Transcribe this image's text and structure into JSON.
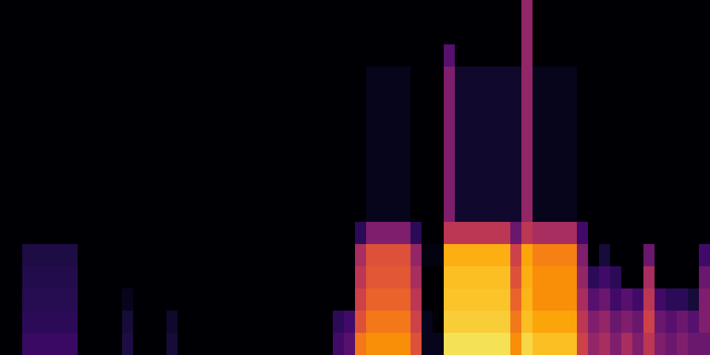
{
  "chart_data": {
    "type": "heatmap",
    "color": "inferno",
    "zlim": [
      0,
      1
    ],
    "tick_labels": false,
    "z": [
      [
        0,
        0,
        0,
        0,
        0,
        0,
        0,
        0,
        0,
        0,
        0,
        0,
        0,
        0,
        0,
        0,
        0,
        0,
        0,
        0,
        0,
        0,
        0,
        0,
        0,
        0,
        0,
        0,
        0,
        0,
        0,
        0,
        0,
        0,
        0,
        0,
        0,
        0,
        0,
        0,
        0,
        0,
        0,
        0,
        0,
        0,
        0,
        0.4,
        0,
        0,
        0,
        0,
        0,
        0,
        0,
        0,
        0,
        0,
        0,
        0,
        0,
        0,
        0,
        0
      ],
      [
        0,
        0,
        0,
        0,
        0,
        0,
        0,
        0,
        0,
        0,
        0,
        0,
        0,
        0,
        0,
        0,
        0,
        0,
        0,
        0,
        0,
        0,
        0,
        0,
        0,
        0,
        0,
        0,
        0,
        0,
        0,
        0,
        0,
        0,
        0,
        0,
        0,
        0,
        0,
        0,
        0,
        0,
        0,
        0,
        0,
        0,
        0,
        0.4,
        0,
        0,
        0,
        0,
        0,
        0,
        0,
        0,
        0,
        0,
        0,
        0,
        0,
        0,
        0,
        0
      ],
      [
        0,
        0,
        0,
        0,
        0,
        0,
        0,
        0,
        0,
        0,
        0,
        0,
        0,
        0,
        0,
        0,
        0,
        0,
        0,
        0,
        0,
        0,
        0,
        0,
        0,
        0,
        0,
        0,
        0,
        0,
        0,
        0,
        0,
        0,
        0,
        0,
        0,
        0,
        0,
        0,
        0.25,
        0,
        0,
        0,
        0,
        0,
        0,
        0.4,
        0,
        0,
        0,
        0,
        0,
        0,
        0,
        0,
        0,
        0,
        0,
        0,
        0,
        0,
        0,
        0
      ],
      [
        0,
        0,
        0,
        0,
        0,
        0,
        0,
        0,
        0,
        0,
        0,
        0,
        0,
        0,
        0,
        0,
        0,
        0,
        0,
        0,
        0,
        0,
        0,
        0,
        0,
        0,
        0,
        0,
        0,
        0,
        0,
        0,
        0,
        0.05,
        0.05,
        0.05,
        0.05,
        0,
        0,
        0,
        0.35,
        0.08,
        0.08,
        0.08,
        0.08,
        0.08,
        0.08,
        0.4,
        0.05,
        0.05,
        0.05,
        0.05,
        0,
        0,
        0,
        0,
        0,
        0,
        0,
        0,
        0,
        0,
        0,
        0
      ],
      [
        0,
        0,
        0,
        0,
        0,
        0,
        0,
        0,
        0,
        0,
        0,
        0,
        0,
        0,
        0,
        0,
        0,
        0,
        0,
        0,
        0,
        0,
        0,
        0,
        0,
        0,
        0,
        0,
        0,
        0,
        0,
        0,
        0,
        0.05,
        0.05,
        0.05,
        0.05,
        0,
        0,
        0,
        0.35,
        0.08,
        0.08,
        0.08,
        0.08,
        0.08,
        0.08,
        0.4,
        0.05,
        0.05,
        0.05,
        0.05,
        0,
        0,
        0,
        0,
        0,
        0,
        0,
        0,
        0,
        0,
        0,
        0
      ],
      [
        0,
        0,
        0,
        0,
        0,
        0,
        0,
        0,
        0,
        0,
        0,
        0,
        0,
        0,
        0,
        0,
        0,
        0,
        0,
        0,
        0,
        0,
        0,
        0,
        0,
        0,
        0,
        0,
        0,
        0,
        0,
        0,
        0,
        0.05,
        0.05,
        0.05,
        0.05,
        0,
        0,
        0,
        0.35,
        0.08,
        0.08,
        0.08,
        0.08,
        0.08,
        0.08,
        0.4,
        0.05,
        0.05,
        0.05,
        0.05,
        0,
        0,
        0,
        0,
        0,
        0,
        0,
        0,
        0,
        0,
        0,
        0
      ],
      [
        0,
        0,
        0,
        0,
        0,
        0,
        0,
        0,
        0,
        0,
        0,
        0,
        0,
        0,
        0,
        0,
        0,
        0,
        0,
        0,
        0,
        0,
        0,
        0,
        0,
        0,
        0,
        0,
        0,
        0,
        0,
        0,
        0,
        0.05,
        0.05,
        0.05,
        0.05,
        0,
        0,
        0,
        0.35,
        0.08,
        0.08,
        0.08,
        0.08,
        0.08,
        0.08,
        0.4,
        0.05,
        0.05,
        0.05,
        0.05,
        0,
        0,
        0,
        0,
        0,
        0,
        0,
        0,
        0,
        0,
        0,
        0
      ],
      [
        0,
        0,
        0,
        0,
        0,
        0,
        0,
        0,
        0,
        0,
        0,
        0,
        0,
        0,
        0,
        0,
        0,
        0,
        0,
        0,
        0,
        0,
        0,
        0,
        0,
        0,
        0,
        0,
        0,
        0,
        0,
        0,
        0,
        0.05,
        0.05,
        0.05,
        0.05,
        0,
        0,
        0,
        0.35,
        0.08,
        0.08,
        0.08,
        0.08,
        0.08,
        0.08,
        0.4,
        0.05,
        0.05,
        0.05,
        0.05,
        0,
        0,
        0,
        0,
        0,
        0,
        0,
        0,
        0,
        0,
        0,
        0
      ],
      [
        0,
        0,
        0,
        0,
        0,
        0,
        0,
        0,
        0,
        0,
        0,
        0,
        0,
        0,
        0,
        0,
        0,
        0,
        0,
        0,
        0,
        0,
        0,
        0,
        0,
        0,
        0,
        0,
        0,
        0,
        0,
        0,
        0,
        0.05,
        0.05,
        0.05,
        0.05,
        0,
        0,
        0,
        0.35,
        0.08,
        0.08,
        0.08,
        0.08,
        0.08,
        0.08,
        0.4,
        0.05,
        0.05,
        0.05,
        0.05,
        0,
        0,
        0,
        0,
        0,
        0,
        0,
        0,
        0,
        0,
        0,
        0
      ],
      [
        0,
        0,
        0,
        0,
        0,
        0,
        0,
        0,
        0,
        0,
        0,
        0,
        0,
        0,
        0,
        0,
        0,
        0,
        0,
        0,
        0,
        0,
        0,
        0,
        0,
        0,
        0,
        0,
        0,
        0,
        0,
        0,
        0,
        0.05,
        0.05,
        0.05,
        0.05,
        0,
        0,
        0,
        0.35,
        0.08,
        0.08,
        0.08,
        0.08,
        0.08,
        0.08,
        0.4,
        0.05,
        0.05,
        0.05,
        0.05,
        0,
        0,
        0,
        0,
        0,
        0,
        0,
        0,
        0,
        0,
        0,
        0
      ],
      [
        0,
        0,
        0,
        0,
        0,
        0,
        0,
        0,
        0,
        0,
        0,
        0,
        0,
        0,
        0,
        0,
        0,
        0,
        0,
        0,
        0,
        0,
        0,
        0,
        0,
        0,
        0,
        0,
        0,
        0,
        0,
        0,
        0.15,
        0.35,
        0.35,
        0.35,
        0.35,
        0.15,
        0,
        0,
        0.5,
        0.5,
        0.5,
        0.5,
        0.5,
        0.5,
        0.3,
        0.5,
        0.45,
        0.45,
        0.45,
        0.45,
        0.2,
        0,
        0,
        0,
        0,
        0,
        0,
        0,
        0,
        0,
        0,
        0
      ],
      [
        0,
        0,
        0.12,
        0.12,
        0.12,
        0.12,
        0.12,
        0,
        0,
        0,
        0,
        0,
        0,
        0,
        0,
        0,
        0,
        0,
        0,
        0,
        0,
        0,
        0,
        0,
        0,
        0,
        0,
        0,
        0,
        0,
        0,
        0,
        0.45,
        0.6,
        0.6,
        0.6,
        0.6,
        0.4,
        0.03,
        0.03,
        0.82,
        0.82,
        0.82,
        0.82,
        0.82,
        0.82,
        0.55,
        0.8,
        0.72,
        0.72,
        0.72,
        0.72,
        0.35,
        0,
        0.1,
        0,
        0,
        0,
        0.3,
        0,
        0,
        0,
        0,
        0.2
      ],
      [
        0,
        0,
        0.13,
        0.13,
        0.13,
        0.13,
        0.13,
        0,
        0,
        0,
        0,
        0,
        0,
        0,
        0,
        0,
        0,
        0,
        0,
        0,
        0,
        0,
        0,
        0,
        0,
        0,
        0,
        0,
        0,
        0,
        0,
        0,
        0.5,
        0.62,
        0.62,
        0.62,
        0.62,
        0.45,
        0,
        0,
        0.85,
        0.85,
        0.85,
        0.85,
        0.85,
        0.85,
        0.6,
        0.82,
        0.75,
        0.75,
        0.75,
        0.75,
        0.4,
        0.15,
        0.2,
        0.15,
        0,
        0,
        0.45,
        0,
        0,
        0,
        0,
        0.3
      ],
      [
        0,
        0,
        0.14,
        0.14,
        0.14,
        0.14,
        0.14,
        0,
        0,
        0,
        0,
        0.05,
        0,
        0,
        0,
        0,
        0,
        0,
        0,
        0,
        0,
        0,
        0,
        0,
        0,
        0,
        0,
        0,
        0,
        0,
        0,
        0,
        0.55,
        0.65,
        0.65,
        0.65,
        0.65,
        0.5,
        0,
        0,
        0.86,
        0.86,
        0.86,
        0.86,
        0.86,
        0.86,
        0.65,
        0.83,
        0.75,
        0.75,
        0.75,
        0.75,
        0.45,
        0.25,
        0.3,
        0.2,
        0.25,
        0.2,
        0.5,
        0.2,
        0.15,
        0.15,
        0.1,
        0.35
      ],
      [
        0,
        0,
        0.15,
        0.15,
        0.15,
        0.15,
        0.15,
        0,
        0,
        0,
        0,
        0.1,
        0,
        0,
        0,
        0.08,
        0,
        0,
        0,
        0,
        0,
        0,
        0,
        0,
        0,
        0,
        0,
        0,
        0,
        0,
        0.15,
        0.2,
        0.6,
        0.7,
        0.7,
        0.7,
        0.7,
        0.55,
        0.05,
        0,
        0.88,
        0.88,
        0.88,
        0.88,
        0.88,
        0.88,
        0.7,
        0.85,
        0.8,
        0.8,
        0.8,
        0.8,
        0.5,
        0.35,
        0.4,
        0.3,
        0.35,
        0.3,
        0.55,
        0.3,
        0.25,
        0.3,
        0.25,
        0.35
      ],
      [
        0,
        0,
        0.18,
        0.18,
        0.18,
        0.18,
        0.18,
        0,
        0,
        0,
        0,
        0.12,
        0,
        0,
        0,
        0.1,
        0,
        0,
        0,
        0,
        0,
        0,
        0,
        0,
        0,
        0,
        0,
        0,
        0,
        0,
        0.2,
        0.25,
        0.7,
        0.75,
        0.75,
        0.75,
        0.75,
        0.6,
        0.05,
        0.05,
        0.92,
        0.92,
        0.92,
        0.92,
        0.92,
        0.92,
        0.75,
        0.9,
        0.85,
        0.85,
        0.85,
        0.85,
        0.55,
        0.4,
        0.45,
        0.35,
        0.45,
        0.35,
        0.5,
        0.35,
        0.3,
        0.35,
        0.3,
        0.3
      ]
    ]
  }
}
